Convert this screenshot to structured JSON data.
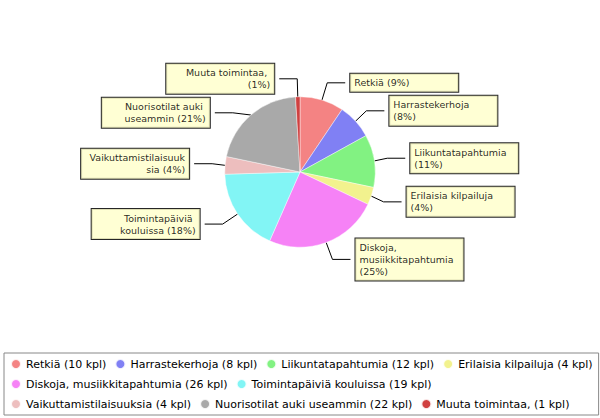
{
  "chart_data": {
    "type": "pie",
    "categories": [
      "Retkiä",
      "Harrastekerhoja",
      "Liikuntatapahtumia",
      "Erilaisia kilpailuja",
      "Diskoja, musiikkitapahtumia",
      "Toimintapäiviä kouluissa",
      "Vaikuttamistilaisuuksia",
      "Nuorisotilat auki useammin",
      "Muuta toimintaa"
    ],
    "values": [
      10,
      8,
      12,
      4,
      26,
      19,
      4,
      22,
      1
    ],
    "value_labels": [
      "Retkiä (9%)",
      "Harrastekerhoja (8%)",
      "Liikuntatapahtumia (11%)",
      "Erilaisia kilpailuja (4%)",
      "Diskoja, musiikkitapahtumia (25%)",
      "Toimintapäiviä kouluissa (18%)",
      "Vaikuttamistilaisuuksia (4%)",
      "Nuorisotilat auki useammin (21%)",
      "Muuta toimintaa, (1%)"
    ],
    "legend_labels": [
      "Retkiä (10 kpl)",
      "Harrastekerhoja (8 kpl)",
      "Liikuntatapahtumia (12 kpl)",
      "Erilaisia kilpailuja (4 kpl)",
      "Diskoja, musiikkitapahtumia (26 kpl)",
      "Toimintapäiviä kouluissa (19 kpl)",
      "Vaikuttamistilaisuuksia (4 kpl)",
      "Nuorisotilat auki useammin (22 kpl)",
      "Muuta toimintaa, (1 kpl)"
    ],
    "colors": [
      "#f26d6d",
      "#6a6af2",
      "#6cf06c",
      "#f0f07a",
      "#f56cf5",
      "#6cf3f3",
      "#eab3b3",
      "#9a9a9a",
      "#c81e1e"
    ],
    "legend": "bottom",
    "data_labels": true
  }
}
